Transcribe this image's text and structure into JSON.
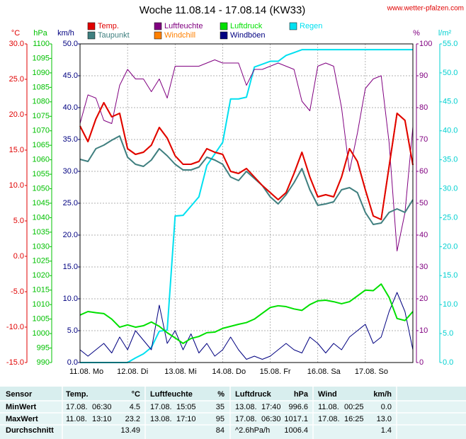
{
  "chart_data": {
    "type": "line",
    "title": "Woche 11.08.14 - 17.08.14 (KW33)",
    "source": "www.wetter-pfalzen.com",
    "xlim": [
      0,
      168
    ],
    "xticks": [
      {
        "value": 0,
        "label": "11.08.  Mo"
      },
      {
        "value": 24,
        "label": "12.08. Di"
      },
      {
        "value": 48,
        "label": "13.08. Mi"
      },
      {
        "value": 72,
        "label": "14.08. Do"
      },
      {
        "value": 96,
        "label": "15.08. Fr"
      },
      {
        "value": 120,
        "label": "16.08. Sa"
      },
      {
        "value": 144,
        "label": "17.08. So"
      }
    ],
    "grid": true,
    "y_axes": [
      {
        "label": "°C",
        "color": "#e00000",
        "lim": [
          -15,
          30
        ],
        "ticks": [
          {
            "value": -15,
            "label": "-15.0"
          },
          {
            "value": -10,
            "label": "-10.0"
          },
          {
            "value": -5,
            "label": "-5.0"
          },
          {
            "value": 0,
            "label": "0.0"
          },
          {
            "value": 5,
            "label": "5.0"
          },
          {
            "value": 10,
            "label": "10.0"
          },
          {
            "value": 15,
            "label": "15.0"
          },
          {
            "value": 20,
            "label": "20.0"
          },
          {
            "value": 25,
            "label": "25.0"
          },
          {
            "value": 30,
            "label": "30.0"
          }
        ]
      },
      {
        "label": "hPa",
        "color": "#00c000",
        "lim": [
          990,
          1100
        ],
        "ticks": [
          990,
          995,
          1000,
          1005,
          1010,
          1015,
          1020,
          1025,
          1030,
          1035,
          1040,
          1045,
          1050,
          1055,
          1060,
          1065,
          1070,
          1075,
          1080,
          1085,
          1090,
          1095,
          1100
        ]
      },
      {
        "label": "km/h",
        "color": "#000080",
        "lim": [
          0,
          50
        ],
        "ticks": [
          {
            "value": 0,
            "label": "0.0"
          },
          {
            "value": 5,
            "label": "5.0"
          },
          {
            "value": 10,
            "label": "10.0"
          },
          {
            "value": 15,
            "label": "15.0"
          },
          {
            "value": 20,
            "label": "20.0"
          },
          {
            "value": 25,
            "label": "25.0"
          },
          {
            "value": 30,
            "label": "30.0"
          },
          {
            "value": 35,
            "label": "35.0"
          },
          {
            "value": 40,
            "label": "40.0"
          },
          {
            "value": 45,
            "label": "45.0"
          },
          {
            "value": 50,
            "label": "50.0"
          }
        ]
      },
      {
        "label": "%",
        "color": "#800080",
        "lim": [
          0,
          100
        ],
        "ticks": [
          0,
          10,
          20,
          30,
          40,
          50,
          60,
          70,
          80,
          90,
          100
        ]
      },
      {
        "label": "l/m²",
        "color": "#00d0d0",
        "lim": [
          0,
          55
        ],
        "ticks": [
          {
            "value": 0,
            "label": "0.0"
          },
          {
            "value": 5,
            "label": "5.0"
          },
          {
            "value": 10,
            "label": "10.0"
          },
          {
            "value": 15,
            "label": "15.0"
          },
          {
            "value": 20,
            "label": "20.0"
          },
          {
            "value": 25,
            "label": "25.0"
          },
          {
            "value": 30,
            "label": "30.0"
          },
          {
            "value": 35,
            "label": "35.0"
          },
          {
            "value": 40,
            "label": "40.0"
          },
          {
            "value": 45,
            "label": "45.0"
          },
          {
            "value": 50,
            "label": "50.0"
          },
          {
            "value": 55,
            "label": "55.0"
          }
        ]
      }
    ],
    "x": [
      0,
      4,
      8,
      12,
      16,
      20,
      24,
      28,
      32,
      36,
      40,
      44,
      48,
      52,
      56,
      60,
      64,
      68,
      72,
      76,
      80,
      84,
      88,
      92,
      96,
      100,
      104,
      108,
      112,
      116,
      120,
      124,
      128,
      132,
      136,
      140,
      144,
      148,
      152,
      156,
      160,
      164,
      168
    ],
    "series": [
      {
        "name": "Regen",
        "color": "#00e0f0",
        "axis": 4,
        "width": 2,
        "values": [
          0,
          0,
          0,
          0,
          0,
          0,
          0,
          0.8,
          1.5,
          2.6,
          5.4,
          5.6,
          25.3,
          25.4,
          27.0,
          28.6,
          34.0,
          36.0,
          38.0,
          45.5,
          45.5,
          45.8,
          51.0,
          51.5,
          52.0,
          52.0,
          53.0,
          53.5,
          54.0,
          54.0,
          54.0,
          54.0,
          54.0,
          54.0,
          54.0,
          54.0,
          54.0,
          54.0,
          54.0,
          54.0,
          54.0,
          54.0,
          54.0
        ]
      },
      {
        "name": "Windböen",
        "color": "#000080",
        "axis": 2,
        "width": 1,
        "values": [
          2,
          1,
          2,
          3,
          1.5,
          4,
          2,
          5,
          3.5,
          2,
          9,
          3,
          5,
          2,
          4.5,
          1.5,
          3,
          1,
          2,
          4,
          2,
          0.5,
          1,
          0.5,
          1,
          2,
          3,
          2,
          1.5,
          4,
          3,
          1.5,
          3,
          2,
          4,
          5,
          6,
          3,
          4,
          8,
          11,
          8,
          2
        ]
      },
      {
        "name": "Luftdruck",
        "color": "#00e000",
        "axis": 1,
        "width": 2,
        "values": [
          1006.4,
          1007.6,
          1007.2,
          1006.9,
          1005.0,
          1002.2,
          1003.0,
          1002.2,
          1002.7,
          1004.0,
          1002.5,
          1000.3,
          998.5,
          996.6,
          998.3,
          999.0,
          1000.3,
          1000.5,
          1001.8,
          1002.5,
          1003.2,
          1003.8,
          1005.0,
          1007.0,
          1009.0,
          1009.6,
          1009.3,
          1008.5,
          1008.0,
          1010.0,
          1011.3,
          1011.5,
          1011.0,
          1010.3,
          1011.0,
          1013.0,
          1015.0,
          1014.8,
          1017.1,
          1012.5,
          1005.2,
          1004.5,
          1007.6
        ]
      },
      {
        "name": "Luftfeuchte",
        "color": "#800080",
        "axis": 3,
        "width": 1,
        "values": [
          75,
          84,
          83,
          76,
          75,
          87,
          92,
          89,
          89,
          85,
          89,
          83,
          93,
          93,
          93,
          93,
          94,
          95,
          94,
          94,
          94,
          87,
          92,
          92,
          93,
          94,
          93,
          92,
          82,
          79,
          93,
          94,
          93,
          80,
          60,
          72,
          86,
          89,
          90,
          69,
          35,
          47,
          74
        ]
      },
      {
        "name": "Windchill",
        "color": "#ff8000",
        "axis": 0,
        "width": 2,
        "values": [
          18.4,
          16.2,
          19.4,
          21.7,
          19.7,
          20.2,
          15.2,
          14.4,
          14.7,
          15.7,
          18.2,
          16.7,
          14.2,
          13.0,
          13.0,
          13.4,
          15.2,
          14.7,
          14.4,
          12.0,
          11.7,
          12.4,
          11.2,
          10.0,
          9.0,
          8.0,
          9.0,
          11.7,
          14.7,
          11.2,
          8.4,
          8.7,
          8.4,
          11.2,
          15.2,
          13.4,
          9.4,
          5.7,
          5.2,
          12.7,
          20.2,
          19.2,
          12.9
        ]
      },
      {
        "name": "Taupunkt",
        "color": "#3f7f7f",
        "axis": 0,
        "width": 2,
        "values": [
          13.7,
          13.4,
          15.2,
          15.7,
          16.4,
          17.0,
          14.0,
          13.0,
          12.7,
          13.6,
          15.2,
          14.2,
          13.0,
          12.2,
          12.2,
          12.6,
          14.0,
          13.6,
          13.0,
          11.2,
          10.7,
          12.0,
          11.0,
          10.0,
          8.4,
          7.4,
          8.7,
          10.4,
          12.4,
          9.4,
          7.2,
          7.4,
          7.7,
          9.4,
          9.7,
          9.0,
          6.2,
          4.5,
          4.7,
          6.2,
          6.7,
          6.2,
          8.0
        ]
      },
      {
        "name": "Temp.",
        "color": "#e00000",
        "axis": 0,
        "width": 2,
        "values": [
          18.4,
          16.2,
          19.4,
          21.7,
          19.7,
          20.2,
          15.2,
          14.4,
          14.7,
          15.7,
          18.2,
          16.7,
          14.2,
          13.0,
          13.0,
          13.4,
          15.2,
          14.7,
          14.4,
          12.0,
          11.7,
          12.4,
          11.2,
          10.0,
          9.0,
          8.0,
          9.0,
          11.7,
          14.7,
          11.2,
          8.4,
          8.7,
          8.4,
          11.2,
          15.2,
          13.4,
          9.4,
          5.7,
          5.2,
          12.7,
          20.2,
          19.2,
          12.9
        ]
      }
    ],
    "legend": [
      6,
      5,
      3,
      4,
      2,
      1,
      0
    ],
    "table": {
      "header": [
        "Sensor",
        "Temp.",
        "°C",
        "Luftfeuchte",
        "%",
        "Luftdruck",
        "hPa",
        "Wind",
        "km/h"
      ],
      "rows": [
        [
          "MinWert",
          "17.08.",
          "06:30",
          "4.5",
          "17.08.",
          "15:05",
          "35",
          "13.08.",
          "17:40",
          "996.6",
          "11.08.",
          "00:25",
          "0.0"
        ],
        [
          "MaxWert",
          "11.08.",
          "13:10",
          "23.2",
          "13.08.",
          "17:10",
          "95",
          "17.08.",
          "06:30",
          "1017.1",
          "17.08.",
          "16:25",
          "13.0"
        ],
        [
          "Durchschnitt",
          null,
          null,
          "13.49",
          null,
          null,
          "84",
          "^2.6hPa/h",
          null,
          "1006.4",
          null,
          null,
          "1.4"
        ]
      ]
    }
  }
}
